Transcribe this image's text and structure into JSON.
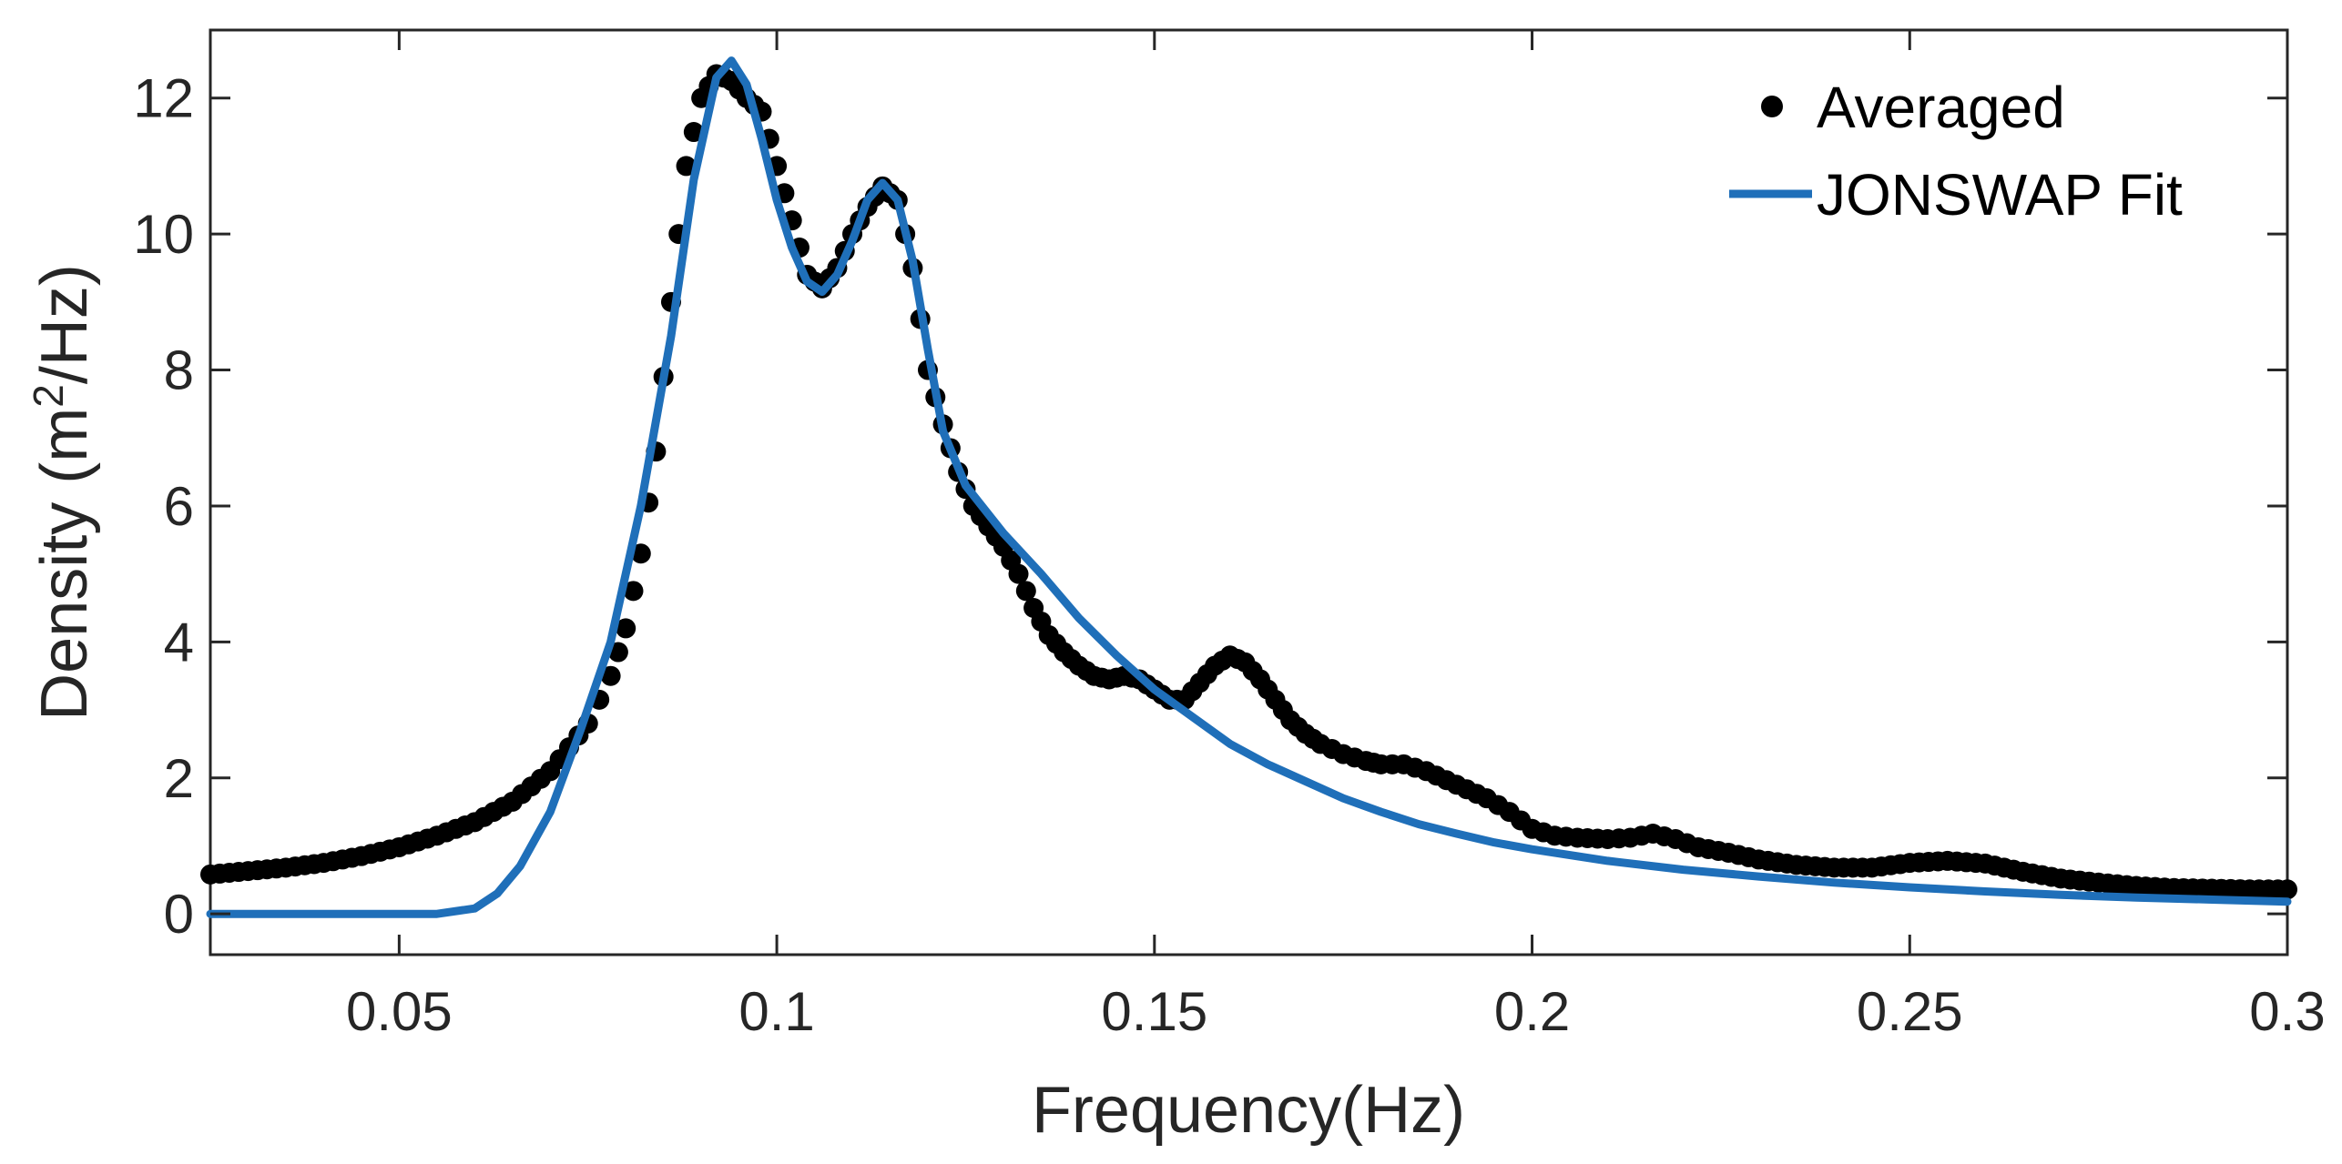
{
  "chart_data": {
    "type": "line+scatter",
    "title": "",
    "xlabel": "Frequency(Hz)",
    "ylabel": "Density (m",
    "ylabel_sup": "2",
    "ylabel_tail": "/Hz)",
    "xlim": [
      0.025,
      0.3
    ],
    "ylim": [
      -0.6,
      13.0
    ],
    "xticks": [
      0.05,
      0.1,
      0.15,
      0.2,
      0.25,
      0.3
    ],
    "xtick_labels": [
      "0.05",
      "0.1",
      "0.15",
      "0.2",
      "0.25",
      "0.3"
    ],
    "yticks": [
      0,
      2,
      4,
      6,
      8,
      10,
      12
    ],
    "ytick_labels": [
      "0",
      "2",
      "4",
      "6",
      "8",
      "10",
      "12"
    ],
    "grid": false,
    "legend_position": "top-right",
    "series": [
      {
        "name": "Averaged",
        "style": "markers",
        "color": "#000000",
        "points": [
          [
            0.025,
            0.58
          ],
          [
            0.03,
            0.63
          ],
          [
            0.035,
            0.68
          ],
          [
            0.04,
            0.75
          ],
          [
            0.045,
            0.85
          ],
          [
            0.05,
            0.98
          ],
          [
            0.055,
            1.15
          ],
          [
            0.06,
            1.35
          ],
          [
            0.065,
            1.65
          ],
          [
            0.07,
            2.1
          ],
          [
            0.075,
            2.8
          ],
          [
            0.078,
            3.5
          ],
          [
            0.08,
            4.2
          ],
          [
            0.082,
            5.3
          ],
          [
            0.084,
            6.8
          ],
          [
            0.086,
            9.0
          ],
          [
            0.088,
            11.0
          ],
          [
            0.09,
            12.0
          ],
          [
            0.092,
            12.35
          ],
          [
            0.094,
            12.25
          ],
          [
            0.096,
            12.0
          ],
          [
            0.098,
            11.8
          ],
          [
            0.1,
            11.0
          ],
          [
            0.102,
            10.2
          ],
          [
            0.104,
            9.4
          ],
          [
            0.106,
            9.2
          ],
          [
            0.108,
            9.5
          ],
          [
            0.11,
            10.0
          ],
          [
            0.112,
            10.4
          ],
          [
            0.114,
            10.7
          ],
          [
            0.116,
            10.5
          ],
          [
            0.118,
            9.5
          ],
          [
            0.12,
            8.0
          ],
          [
            0.122,
            7.2
          ],
          [
            0.124,
            6.5
          ],
          [
            0.126,
            6.0
          ],
          [
            0.128,
            5.7
          ],
          [
            0.13,
            5.4
          ],
          [
            0.132,
            5.0
          ],
          [
            0.134,
            4.5
          ],
          [
            0.136,
            4.1
          ],
          [
            0.138,
            3.85
          ],
          [
            0.14,
            3.65
          ],
          [
            0.142,
            3.5
          ],
          [
            0.144,
            3.45
          ],
          [
            0.146,
            3.5
          ],
          [
            0.148,
            3.45
          ],
          [
            0.15,
            3.3
          ],
          [
            0.152,
            3.15
          ],
          [
            0.154,
            3.15
          ],
          [
            0.156,
            3.4
          ],
          [
            0.158,
            3.65
          ],
          [
            0.16,
            3.8
          ],
          [
            0.162,
            3.7
          ],
          [
            0.164,
            3.45
          ],
          [
            0.166,
            3.15
          ],
          [
            0.168,
            2.85
          ],
          [
            0.17,
            2.65
          ],
          [
            0.172,
            2.5
          ],
          [
            0.175,
            2.35
          ],
          [
            0.178,
            2.25
          ],
          [
            0.18,
            2.2
          ],
          [
            0.183,
            2.2
          ],
          [
            0.186,
            2.1
          ],
          [
            0.19,
            1.9
          ],
          [
            0.194,
            1.7
          ],
          [
            0.197,
            1.5
          ],
          [
            0.2,
            1.25
          ],
          [
            0.203,
            1.15
          ],
          [
            0.206,
            1.12
          ],
          [
            0.21,
            1.1
          ],
          [
            0.213,
            1.12
          ],
          [
            0.216,
            1.18
          ],
          [
            0.219,
            1.1
          ],
          [
            0.222,
            0.98
          ],
          [
            0.226,
            0.9
          ],
          [
            0.23,
            0.8
          ],
          [
            0.235,
            0.72
          ],
          [
            0.24,
            0.68
          ],
          [
            0.245,
            0.68
          ],
          [
            0.25,
            0.75
          ],
          [
            0.255,
            0.78
          ],
          [
            0.26,
            0.74
          ],
          [
            0.265,
            0.62
          ],
          [
            0.27,
            0.52
          ],
          [
            0.275,
            0.46
          ],
          [
            0.28,
            0.41
          ],
          [
            0.285,
            0.38
          ],
          [
            0.29,
            0.37
          ],
          [
            0.295,
            0.36
          ],
          [
            0.3,
            0.36
          ]
        ]
      },
      {
        "name": "JONSWAP Fit",
        "style": "line",
        "color": "#1f6fb9",
        "points": [
          [
            0.025,
            0.0
          ],
          [
            0.055,
            0.0
          ],
          [
            0.06,
            0.08
          ],
          [
            0.063,
            0.3
          ],
          [
            0.066,
            0.7
          ],
          [
            0.07,
            1.5
          ],
          [
            0.074,
            2.7
          ],
          [
            0.078,
            4.0
          ],
          [
            0.082,
            6.0
          ],
          [
            0.086,
            8.5
          ],
          [
            0.089,
            10.8
          ],
          [
            0.092,
            12.3
          ],
          [
            0.094,
            12.55
          ],
          [
            0.096,
            12.2
          ],
          [
            0.098,
            11.4
          ],
          [
            0.1,
            10.5
          ],
          [
            0.102,
            9.8
          ],
          [
            0.104,
            9.3
          ],
          [
            0.106,
            9.15
          ],
          [
            0.108,
            9.4
          ],
          [
            0.11,
            9.9
          ],
          [
            0.112,
            10.5
          ],
          [
            0.114,
            10.75
          ],
          [
            0.116,
            10.5
          ],
          [
            0.118,
            9.6
          ],
          [
            0.12,
            8.3
          ],
          [
            0.122,
            7.1
          ],
          [
            0.125,
            6.3
          ],
          [
            0.13,
            5.6
          ],
          [
            0.135,
            5.0
          ],
          [
            0.14,
            4.35
          ],
          [
            0.145,
            3.8
          ],
          [
            0.15,
            3.3
          ],
          [
            0.155,
            2.9
          ],
          [
            0.16,
            2.5
          ],
          [
            0.165,
            2.2
          ],
          [
            0.17,
            1.95
          ],
          [
            0.175,
            1.7
          ],
          [
            0.18,
            1.5
          ],
          [
            0.185,
            1.32
          ],
          [
            0.19,
            1.18
          ],
          [
            0.195,
            1.05
          ],
          [
            0.2,
            0.95
          ],
          [
            0.21,
            0.78
          ],
          [
            0.22,
            0.65
          ],
          [
            0.23,
            0.55
          ],
          [
            0.24,
            0.46
          ],
          [
            0.25,
            0.39
          ],
          [
            0.26,
            0.33
          ],
          [
            0.27,
            0.28
          ],
          [
            0.28,
            0.24
          ],
          [
            0.29,
            0.21
          ],
          [
            0.3,
            0.18
          ]
        ]
      }
    ]
  }
}
